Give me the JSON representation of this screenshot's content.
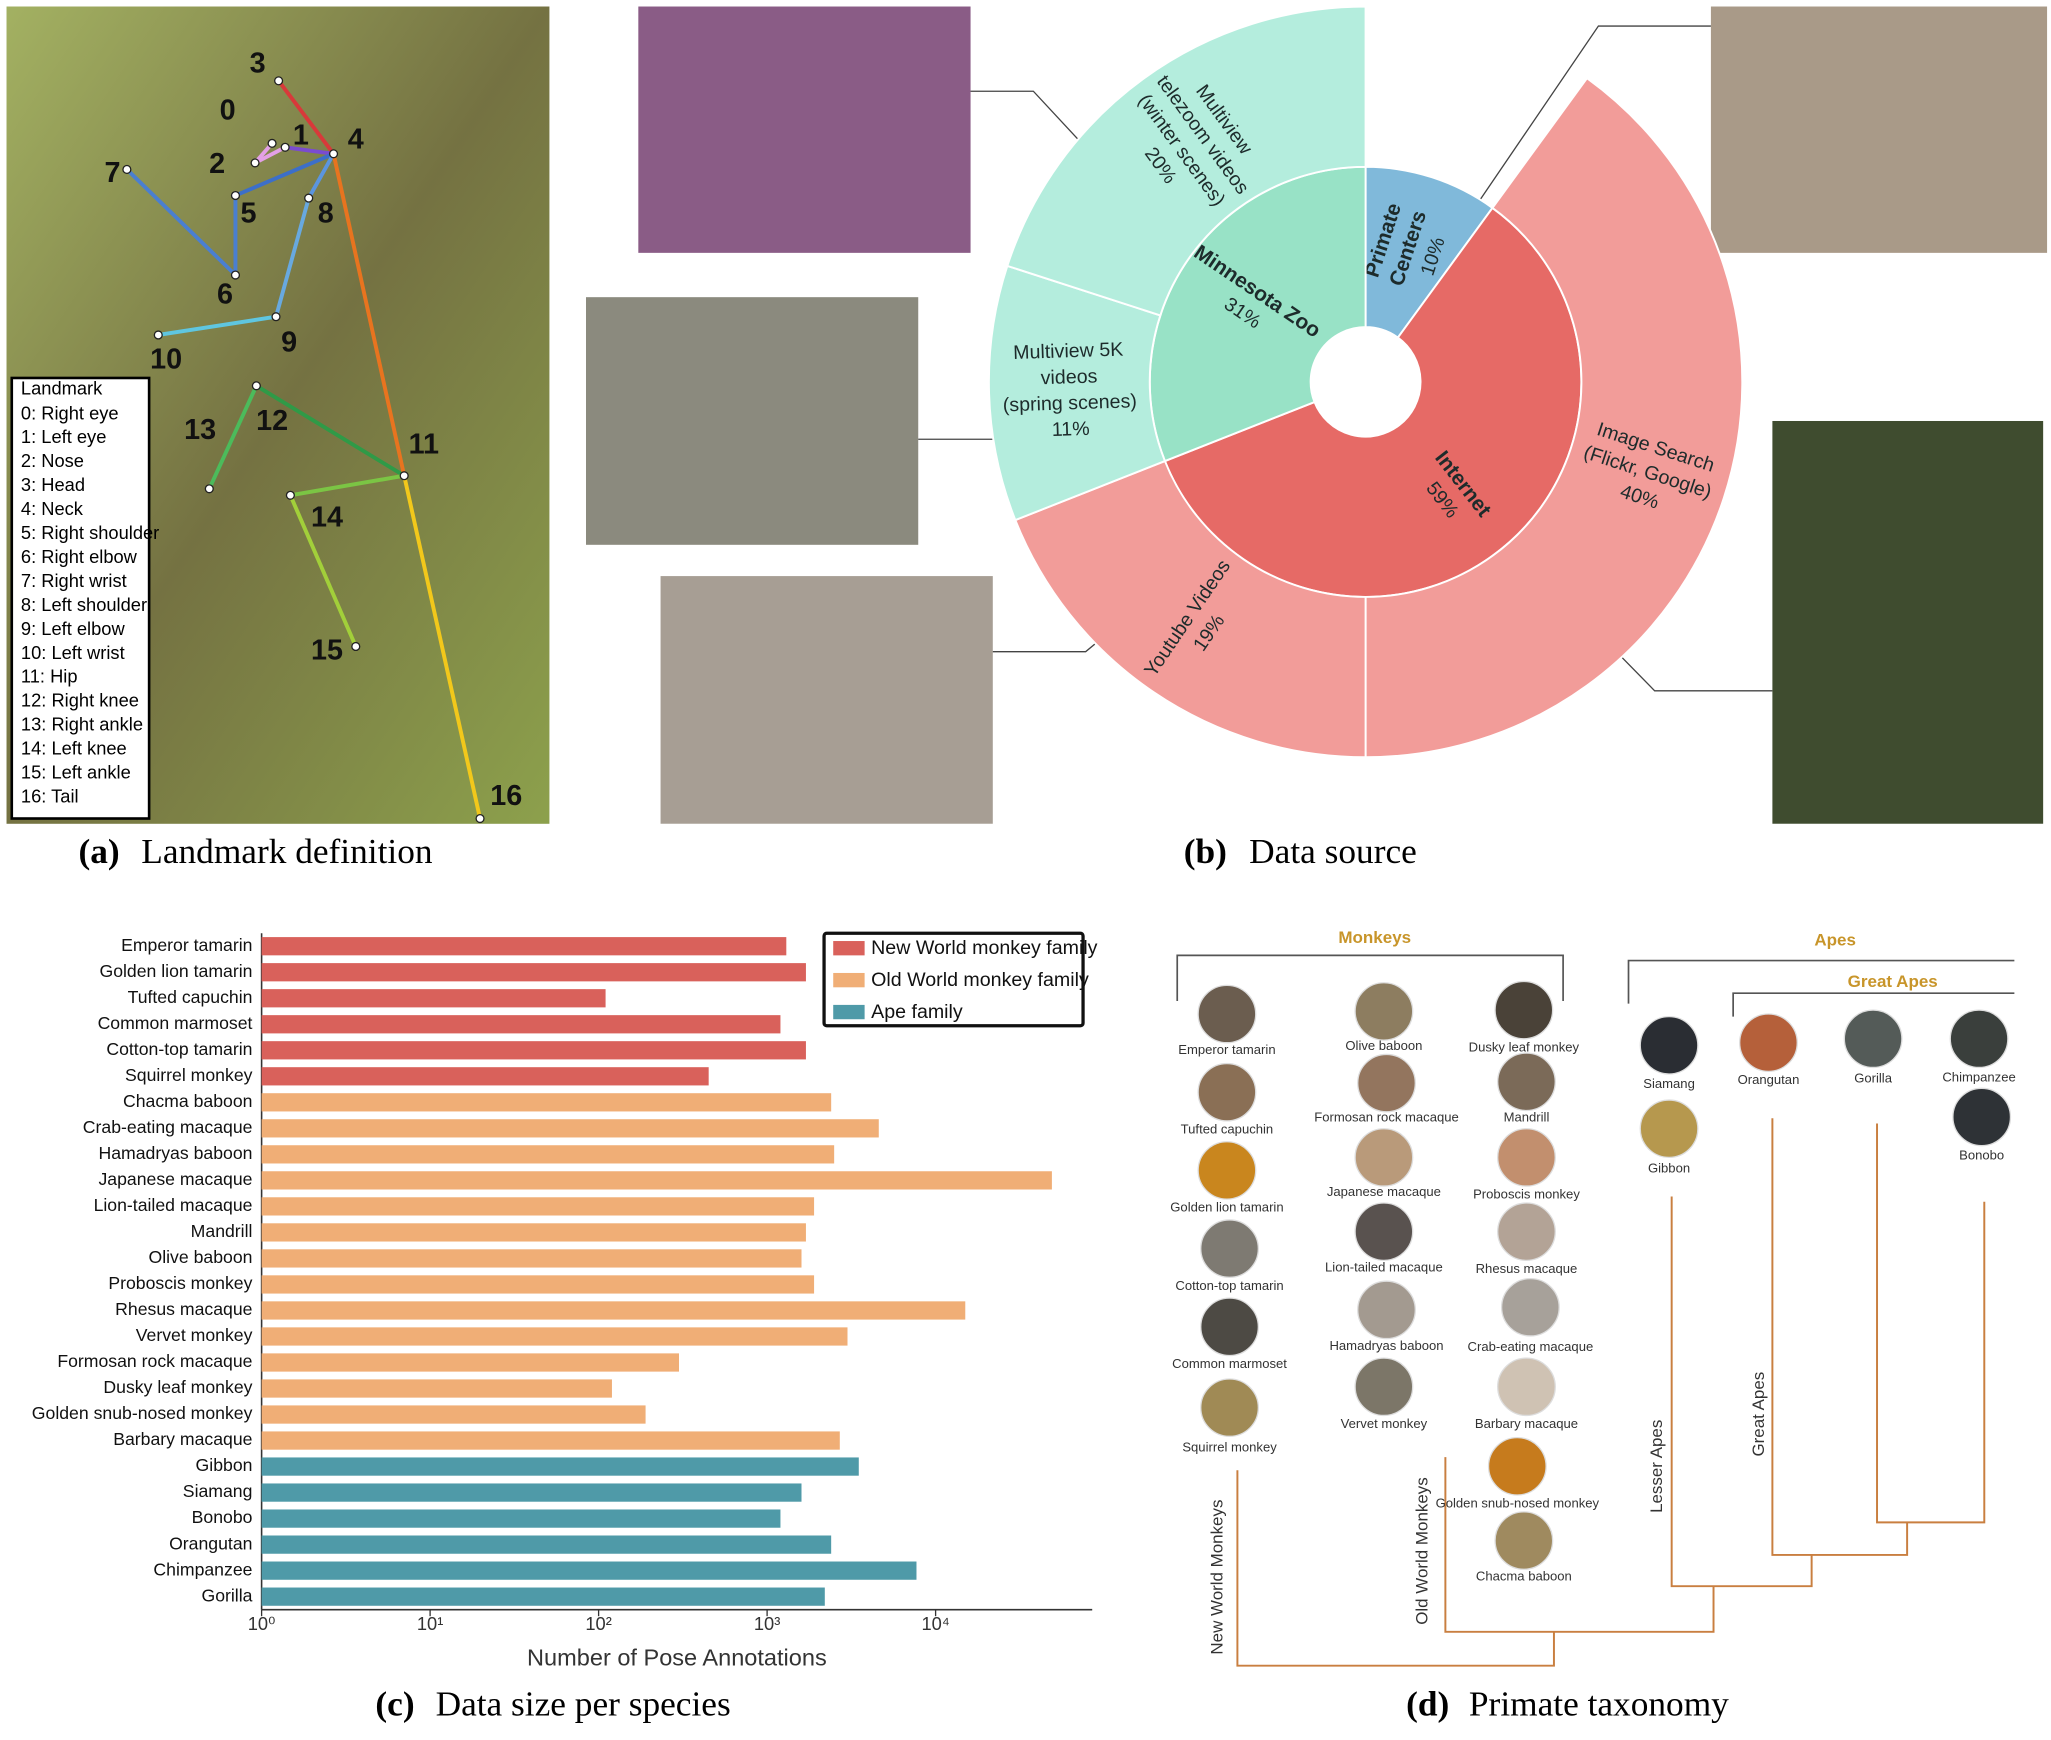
{
  "panels": [
    {
      "label": "(a)",
      "caption": "Landmark definition"
    },
    {
      "label": "(b)",
      "caption": "Data source"
    },
    {
      "label": "(c)",
      "caption": "Data size per species"
    },
    {
      "label": "(d)",
      "caption": "Primate taxonomy"
    }
  ],
  "landmarks": {
    "title": "Landmark",
    "items": [
      "0: Right eye",
      "1: Left eye",
      "2: Nose",
      "3: Head",
      "4: Neck",
      "5: Right shoulder",
      "6: Right elbow",
      "7: Right wrist",
      "8: Left shoulder",
      "9: Left elbow",
      "10: Left wrist",
      "11: Hip",
      "12: Right knee",
      "13: Right ankle",
      "14: Left knee",
      "15: Left ankle",
      "16: Tail"
    ],
    "keypoints": [
      "0",
      "1",
      "2",
      "3",
      "4",
      "5",
      "6",
      "7",
      "8",
      "9",
      "10",
      "11",
      "12",
      "13",
      "14",
      "15",
      "16"
    ]
  },
  "chart_data": [
    {
      "type": "sunburst",
      "segments": [
        {
          "name": [
            "Primate",
            "Centers"
          ],
          "value": 10,
          "value_label": "10%",
          "color": "#80b9da"
        },
        {
          "name": [
            "Internet"
          ],
          "value": 59,
          "value_label": "59%",
          "color": "#e66a66",
          "children": [
            {
              "name": [
                "Image Search",
                "(Flickr, Google)"
              ],
              "value": 40,
              "value_label": "40%",
              "color": "#f29c99"
            },
            {
              "name": [
                "Youtube Videos"
              ],
              "value": 19,
              "value_label": "19%",
              "color": "#f29c99"
            }
          ]
        },
        {
          "name": [
            "Minnesota Zoo"
          ],
          "value": 31,
          "value_label": "31%",
          "color": "#98e2c6",
          "children": [
            {
              "name": [
                "Multiview 5K",
                "videos",
                "(spring scenes)"
              ],
              "value": 11,
              "value_label": "11%",
              "color": "#b4eddd"
            },
            {
              "name": [
                "Multiview",
                "telezoom videos",
                "(winter scenes)"
              ],
              "value": 20,
              "value_label": "20%",
              "color": "#b4eddd"
            }
          ]
        }
      ]
    },
    {
      "type": "bar",
      "orientation": "horizontal",
      "xscale": "log",
      "xlabel": "Number of Pose Annotations",
      "xlim": [
        1,
        85000
      ],
      "xticks": [
        {
          "value": 1,
          "label": "10⁰"
        },
        {
          "value": 10,
          "label": "10¹"
        },
        {
          "value": 100,
          "label": "10²"
        },
        {
          "value": 1000,
          "label": "10³"
        },
        {
          "value": 10000,
          "label": "10⁴"
        }
      ],
      "legend": "upper right",
      "categories": [
        "Emperor tamarin",
        "Golden lion tamarin",
        "Tufted capuchin",
        "Common marmoset",
        "Cotton-top tamarin",
        "Squirrel monkey",
        "Chacma baboon",
        "Crab-eating macaque",
        "Hamadryas baboon",
        "Japanese macaque",
        "Lion-tailed macaque",
        "Mandrill",
        "Olive baboon",
        "Proboscis monkey",
        "Rhesus macaque",
        "Vervet monkey",
        "Formosan rock macaque",
        "Dusky leaf monkey",
        "Golden snub-nosed monkey",
        "Barbary macaque",
        "Gibbon",
        "Siamang",
        "Bonobo",
        "Orangutan",
        "Chimpanzee",
        "Gorilla"
      ],
      "series": [
        {
          "name": "New World monkey family",
          "color": "#d9615b",
          "values": [
            1300,
            1700,
            110,
            1200,
            1700,
            450,
            null,
            null,
            null,
            null,
            null,
            null,
            null,
            null,
            null,
            null,
            null,
            null,
            null,
            null,
            null,
            null,
            null,
            null,
            null,
            null
          ]
        },
        {
          "name": "Old World monkey family",
          "color": "#f0ae76",
          "values": [
            null,
            null,
            null,
            null,
            null,
            null,
            2400,
            4600,
            2500,
            49000,
            1900,
            1700,
            1600,
            1900,
            15000,
            3000,
            300,
            120,
            190,
            2700,
            null,
            null,
            null,
            null,
            null,
            null
          ]
        },
        {
          "name": "Ape family",
          "color": "#4f9aa8",
          "values": [
            null,
            null,
            null,
            null,
            null,
            null,
            null,
            null,
            null,
            null,
            null,
            null,
            null,
            null,
            null,
            null,
            null,
            null,
            null,
            null,
            3500,
            1600,
            1200,
            2400,
            7700,
            2200
          ]
        }
      ]
    }
  ],
  "taxonomy": {
    "groups": [
      "Monkeys",
      "Apes",
      "Great Apes"
    ],
    "species": [
      "Emperor tamarin",
      "Tufted capuchin",
      "Golden lion tamarin",
      "Cotton-top tamarin",
      "Common marmoset",
      "Squirrel monkey",
      "Olive baboon",
      "Formosan rock macaque",
      "Japanese macaque",
      "Lion-tailed macaque",
      "Hamadryas baboon",
      "Vervet monkey",
      "Dusky leaf monkey",
      "Mandrill",
      "Proboscis monkey",
      "Rhesus macaque",
      "Crab-eating macaque",
      "Barbary macaque",
      "Golden snub-nosed monkey",
      "Chacma baboon",
      "Siamang",
      "Gibbon",
      "Orangutan",
      "Gorilla",
      "Chimpanzee",
      "Bonobo"
    ],
    "branches": [
      "New World Monkeys",
      "Old World Monkeys",
      "Lesser Apes",
      "Great  Apes"
    ]
  }
}
